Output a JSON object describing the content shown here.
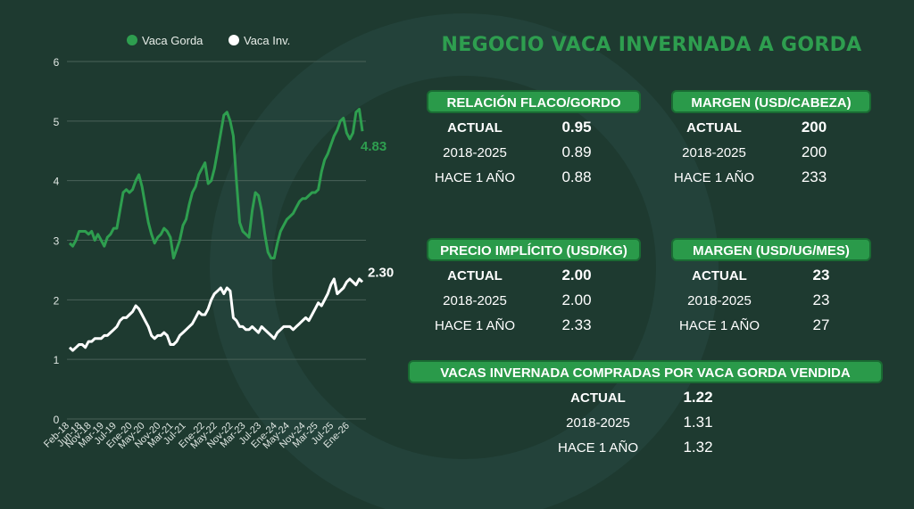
{
  "chart_data": {
    "type": "line",
    "x": [
      "Feb-18",
      null,
      null,
      null,
      "Jun-18",
      null,
      null,
      "Nov-18",
      null,
      null,
      null,
      "Mar-19",
      null,
      null,
      null,
      "Jul-19",
      null,
      null,
      null,
      null,
      "Ene-20",
      null,
      null,
      null,
      "May-20",
      null,
      null,
      null,
      null,
      "Nov-20",
      null,
      null,
      null,
      "Mar-21",
      null,
      null,
      null,
      "Jul-21",
      null,
      null,
      null,
      null,
      null,
      "Ene-22",
      null,
      null,
      null,
      "May-22",
      null,
      null,
      null,
      null,
      "Nov-22",
      null,
      null,
      null,
      "Mar-23",
      null,
      null,
      null,
      null,
      "Jul-23",
      null,
      null,
      null,
      null,
      "Ene-24",
      null,
      null,
      null,
      "May-24",
      null,
      null,
      null,
      null,
      "Nov-24",
      null,
      null,
      null,
      "Mar-25",
      null,
      null,
      null,
      null,
      "Jul-25",
      null,
      null,
      null,
      null,
      "Ene-26",
      null,
      null,
      null,
      null
    ],
    "series": [
      {
        "name": "Vaca Gorda",
        "color": "#2e9e4f",
        "values": [
          2.95,
          2.9,
          3.0,
          3.15,
          3.15,
          3.15,
          3.1,
          3.15,
          3.0,
          3.1,
          3.0,
          2.9,
          3.05,
          3.1,
          3.2,
          3.2,
          3.5,
          3.8,
          3.85,
          3.8,
          3.85,
          4.0,
          4.1,
          3.9,
          3.6,
          3.3,
          3.1,
          2.95,
          3.05,
          3.1,
          3.2,
          3.15,
          3.05,
          2.7,
          2.85,
          3.0,
          3.25,
          3.35,
          3.6,
          3.8,
          3.9,
          4.1,
          4.2,
          4.3,
          3.95,
          4.0,
          4.2,
          4.5,
          4.8,
          5.1,
          5.15,
          5.0,
          4.75,
          4.0,
          3.3,
          3.15,
          3.1,
          3.05,
          3.5,
          3.8,
          3.75,
          3.5,
          3.1,
          2.8,
          2.7,
          2.7,
          2.95,
          3.15,
          3.25,
          3.35,
          3.4,
          3.45,
          3.55,
          3.65,
          3.7,
          3.7,
          3.75,
          3.8,
          3.8,
          3.85,
          4.15,
          4.35,
          4.45,
          4.6,
          4.75,
          4.85,
          5.0,
          5.05,
          4.8,
          4.7,
          4.8,
          5.15,
          5.2,
          4.83
        ]
      },
      {
        "name": "Vaca Inv.",
        "color": "#ffffff",
        "values": [
          1.2,
          1.15,
          1.2,
          1.25,
          1.25,
          1.2,
          1.3,
          1.3,
          1.35,
          1.35,
          1.35,
          1.4,
          1.4,
          1.45,
          1.5,
          1.55,
          1.65,
          1.7,
          1.7,
          1.75,
          1.8,
          1.9,
          1.85,
          1.75,
          1.65,
          1.55,
          1.4,
          1.35,
          1.4,
          1.4,
          1.45,
          1.4,
          1.25,
          1.25,
          1.3,
          1.4,
          1.45,
          1.5,
          1.55,
          1.6,
          1.7,
          1.8,
          1.75,
          1.75,
          1.85,
          2.0,
          2.1,
          2.15,
          2.2,
          2.1,
          2.2,
          2.15,
          1.7,
          1.65,
          1.55,
          1.55,
          1.5,
          1.5,
          1.55,
          1.5,
          1.45,
          1.55,
          1.5,
          1.45,
          1.4,
          1.35,
          1.45,
          1.5,
          1.55,
          1.55,
          1.55,
          1.5,
          1.55,
          1.6,
          1.65,
          1.7,
          1.65,
          1.75,
          1.85,
          1.95,
          1.9,
          2.0,
          2.1,
          2.25,
          2.35,
          2.1,
          2.15,
          2.2,
          2.3,
          2.35,
          2.3,
          2.25,
          2.35,
          2.3
        ],
        "value_labels": [
          null,
          null,
          null,
          null,
          null,
          null,
          null,
          null,
          null,
          null,
          null,
          null,
          null,
          null,
          null,
          null,
          null,
          null,
          null,
          null,
          null,
          null,
          null,
          null,
          null,
          null,
          null,
          null,
          null,
          null,
          null,
          null,
          null,
          null,
          null,
          null,
          null,
          null,
          null,
          null,
          null,
          null,
          null,
          null,
          null,
          null,
          null,
          null,
          null,
          null,
          null,
          null,
          null,
          null,
          null,
          null,
          null,
          null,
          null,
          null,
          null,
          null,
          null,
          null,
          null,
          null,
          null,
          null,
          null,
          null,
          null,
          null,
          null,
          null,
          null,
          null,
          null,
          null,
          null,
          null,
          null,
          null,
          null,
          null,
          null,
          null,
          null,
          null,
          null,
          null,
          null,
          null,
          null,
          "2.30"
        ]
      }
    ],
    "ylim": [
      0,
      6
    ],
    "yticks": [
      0,
      1,
      2,
      3,
      4,
      5,
      6
    ],
    "grid": true
  },
  "title": "NEGOCIO VACA INVERNADA A GORDA",
  "panels": [
    {
      "title": "RELACIÓN FLACO/GORDO",
      "rows": [
        [
          "ACTUAL",
          "0.95"
        ],
        [
          "2018-2025",
          "0.89"
        ],
        [
          "HACE 1 AÑO",
          "0.88"
        ]
      ]
    },
    {
      "title": "MARGEN (USD/CABEZA)",
      "rows": [
        [
          "ACTUAL",
          "200"
        ],
        [
          "2018-2025",
          "200"
        ],
        [
          "HACE 1 AÑO",
          "233"
        ]
      ]
    },
    {
      "title": "PRECIO IMPLÍCITO (USD/KG)",
      "rows": [
        [
          "ACTUAL",
          "2.00"
        ],
        [
          "2018-2025",
          "2.00"
        ],
        [
          "HACE 1 AÑO",
          "2.33"
        ]
      ]
    },
    {
      "title": "MARGEN (USD/UG/MES)",
      "rows": [
        [
          "ACTUAL",
          "23"
        ],
        [
          "2018-2025",
          "23"
        ],
        [
          "HACE 1 AÑO",
          "27"
        ]
      ]
    },
    {
      "title": "VACAS INVERNADA COMPRADAS POR VACA GORDA VENDIDA",
      "rows": [
        [
          "ACTUAL",
          "1.22"
        ],
        [
          "2018-2025",
          "1.31"
        ],
        [
          "HACE 1 AÑO",
          "1.32"
        ]
      ]
    }
  ]
}
